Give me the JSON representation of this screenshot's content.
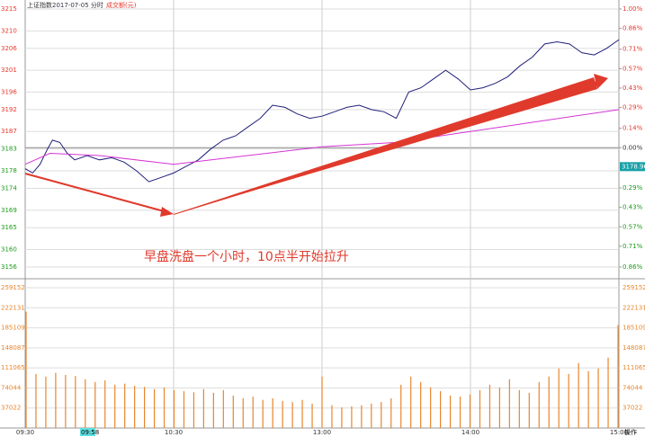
{
  "header": {
    "index_name": "上证指数",
    "date_label": "2017-07-05 分时",
    "volume_label": "成交额(元)",
    "cursor_time": "09:58",
    "action": "操作"
  },
  "chart_data": [
    {
      "type": "line",
      "annotation": "早盘洗盘一个小时，10点半开始拉升",
      "last_price": 3178.96,
      "x": [
        0,
        3,
        6,
        9,
        11,
        14,
        17,
        20,
        25,
        30,
        35,
        40,
        45,
        50,
        55,
        60,
        65,
        70,
        75,
        80,
        85,
        90,
        95,
        100,
        105,
        110,
        115,
        120,
        125,
        130,
        135,
        140,
        145,
        150,
        155,
        160,
        165,
        170,
        175,
        180,
        185,
        190,
        195,
        200,
        205,
        210,
        215,
        220,
        225,
        230,
        235,
        240
      ],
      "xlim": [
        0,
        240
      ],
      "xticks": [
        {
          "value": 0,
          "label": "09:30"
        },
        {
          "value": 60,
          "label": "10:30"
        },
        {
          "value": 120,
          "label": "13:00"
        },
        {
          "value": 180,
          "label": "14:00"
        },
        {
          "value": 240,
          "label": "15:00"
        }
      ],
      "series": [
        {
          "name": "上证指数",
          "color": "#1f1f7a",
          "values": [
            3178.5,
            3177.5,
            3179.5,
            3183,
            3185,
            3184.5,
            3182,
            3180.5,
            3181.5,
            3180.5,
            3181,
            3180,
            3178,
            3175.5,
            3176.5,
            3177.5,
            3179,
            3180.5,
            3183,
            3185,
            3186,
            3188,
            3190,
            3193,
            3192.5,
            3191,
            3190,
            3190.5,
            3191.5,
            3192.5,
            3193,
            3192,
            3191.5,
            3190,
            3196,
            3197,
            3199,
            3201,
            3199,
            3196.5,
            3197,
            3198,
            3199.5,
            3202,
            3204,
            3207,
            3207.5,
            3207,
            3205,
            3204.5,
            3206,
            3208
          ]
        },
        {
          "color": "#d535d5",
          "x": [
            0,
            10,
            30,
            60,
            90,
            120,
            150,
            180,
            210,
            240
          ],
          "values": [
            3179.5,
            3182,
            3181.5,
            3179.5,
            3181.5,
            3183.5,
            3184.5,
            3187,
            3189.5,
            3192
          ]
        }
      ],
      "ylim": [
        3156,
        3215
      ],
      "yticks": [
        3215,
        3210,
        3206,
        3201,
        3196,
        3192,
        3187,
        3183,
        3178,
        3174,
        3169,
        3165,
        3160,
        3156
      ],
      "y2lim": [
        -0.86,
        1.0
      ],
      "y2ticks": [
        {
          "value": 1.0,
          "label": "1.00%"
        },
        {
          "value": 0.86,
          "label": "0.86%"
        },
        {
          "value": 0.71,
          "label": "0.71%"
        },
        {
          "value": 0.57,
          "label": "0.57%"
        },
        {
          "value": 0.43,
          "label": "0.43%"
        },
        {
          "value": 0.29,
          "label": "0.29%"
        },
        {
          "value": 0.14,
          "label": "0.14%"
        },
        {
          "value": 0,
          "label": "0.00%"
        },
        {
          "value": -0.29,
          "label": "0.29%"
        },
        {
          "value": -0.43,
          "label": "0.43%"
        },
        {
          "value": -0.57,
          "label": "0.57%"
        },
        {
          "value": -0.71,
          "label": "0.71%"
        },
        {
          "value": -0.86,
          "label": "0.86%"
        }
      ],
      "up_color": "#e8372c",
      "down_color": "#1c9a1c",
      "grid": true
    },
    {
      "type": "bar",
      "color": "#e8862c",
      "values": [
        215000,
        100000,
        95000,
        102000,
        98000,
        96000,
        90000,
        85000,
        88000,
        80000,
        82000,
        78000,
        76000,
        72000,
        75000,
        70000,
        68000,
        66000,
        72000,
        65000,
        70000,
        60000,
        55000,
        58000,
        52000,
        55000,
        50000,
        48000,
        52000,
        45000,
        95000,
        42000,
        38000,
        40000,
        42000,
        45000,
        48000,
        55000,
        80000,
        95000,
        85000,
        75000,
        68000,
        60000,
        58000,
        62000,
        70000,
        80000,
        75000,
        90000,
        70000,
        65000,
        85000,
        95000,
        110000,
        100000,
        120000,
        105000,
        110000,
        130000,
        190000
      ],
      "ylim": [
        0,
        259152
      ],
      "yticks": [
        259152,
        222131,
        185109,
        148087,
        111065,
        74044,
        37022
      ]
    }
  ]
}
